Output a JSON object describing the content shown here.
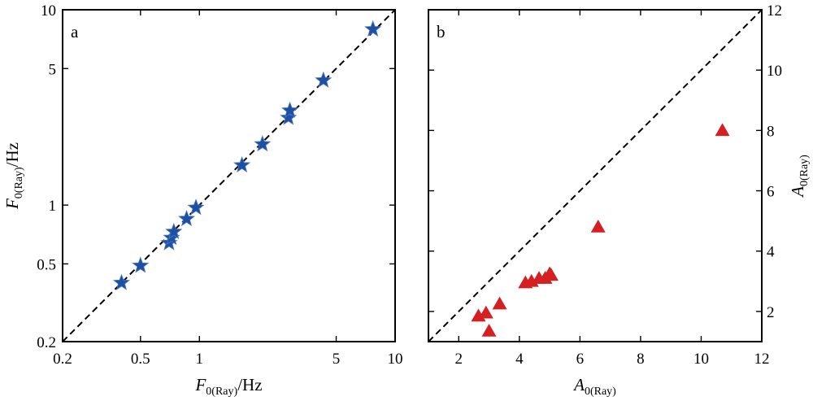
{
  "chart_data": [
    {
      "type": "scatter",
      "panel_label": "a",
      "x_scale": "log",
      "y_scale": "log",
      "xlim": [
        0.2,
        10
      ],
      "ylim": [
        0.2,
        10
      ],
      "x_ticks": [
        0.2,
        0.5,
        1,
        5,
        10
      ],
      "y_ticks": [
        0.2,
        0.5,
        1,
        5,
        10
      ],
      "x_ticklabels": [
        "0.2",
        "0.5",
        "1",
        "5",
        "10"
      ],
      "y_ticklabels": [
        "0.2",
        "0.5",
        "1",
        "5",
        "10"
      ],
      "xlabel": {
        "var": "F",
        "sub": "0(Ray)",
        "unit": "/Hz"
      },
      "ylabel": {
        "var": "F",
        "sub": "0(Ray)",
        "unit": "/Hz"
      },
      "reference_line": "y = x (dashed)",
      "marker": "star",
      "marker_color": "#1f4fa0",
      "points": [
        {
          "x": 0.4,
          "y": 0.4
        },
        {
          "x": 0.5,
          "y": 0.49
        },
        {
          "x": 0.7,
          "y": 0.64
        },
        {
          "x": 0.72,
          "y": 0.68
        },
        {
          "x": 0.74,
          "y": 0.73
        },
        {
          "x": 0.86,
          "y": 0.85
        },
        {
          "x": 0.96,
          "y": 0.97
        },
        {
          "x": 1.65,
          "y": 1.6
        },
        {
          "x": 2.1,
          "y": 2.05
        },
        {
          "x": 2.85,
          "y": 2.8
        },
        {
          "x": 2.9,
          "y": 3.05
        },
        {
          "x": 4.3,
          "y": 4.35
        },
        {
          "x": 7.7,
          "y": 7.95
        }
      ]
    },
    {
      "type": "scatter",
      "panel_label": "b",
      "x_scale": "linear",
      "y_scale": "linear",
      "xlim": [
        1,
        12
      ],
      "ylim": [
        1,
        12
      ],
      "x_ticks": [
        2,
        4,
        6,
        8,
        10,
        12
      ],
      "y_ticks": [
        2,
        4,
        6,
        8,
        10,
        12
      ],
      "x_ticklabels": [
        "2",
        "4",
        "6",
        "8",
        "10",
        "12"
      ],
      "y_ticklabels": [
        "2",
        "4",
        "6",
        "8",
        "10",
        "12"
      ],
      "xlabel": {
        "var": "A",
        "sub": "0(Ray)",
        "unit": ""
      },
      "ylabel": {
        "var": "A",
        "sub": "0(Ray)",
        "unit": ""
      },
      "ylabel_side": "right",
      "reference_line": "y = x (dashed)",
      "marker": "triangle",
      "marker_color": "#d42020",
      "points": [
        {
          "x": 2.65,
          "y": 1.85
        },
        {
          "x": 2.9,
          "y": 1.95
        },
        {
          "x": 3.0,
          "y": 1.35
        },
        {
          "x": 3.35,
          "y": 2.25
        },
        {
          "x": 4.2,
          "y": 2.95
        },
        {
          "x": 4.4,
          "y": 3.0
        },
        {
          "x": 4.65,
          "y": 3.1
        },
        {
          "x": 4.85,
          "y": 3.1
        },
        {
          "x": 5.0,
          "y": 3.25
        },
        {
          "x": 5.05,
          "y": 3.2
        },
        {
          "x": 6.6,
          "y": 4.8
        },
        {
          "x": 10.7,
          "y": 8.0
        }
      ]
    }
  ]
}
